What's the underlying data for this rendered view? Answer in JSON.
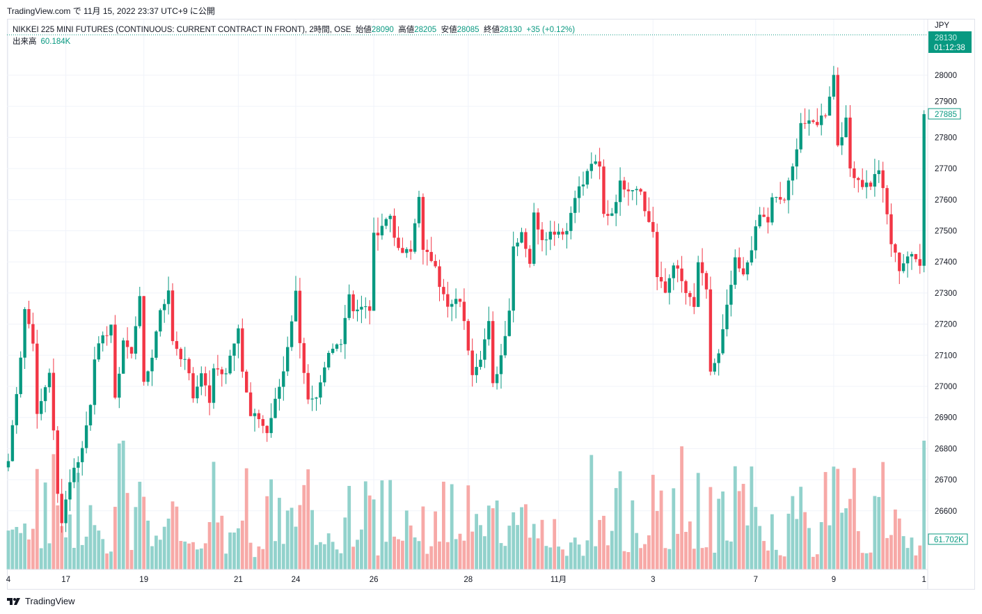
{
  "published": "TradingView.com で 11月 15, 2022 23:37 UTC+9 に公開",
  "legend": {
    "symbol": "NIKKEI 225 MINI FUTURES (CONTINUOUS: CURRENT CONTRACT IN FRONT), 2時間, OSE",
    "open_label": "始値",
    "open": "28090",
    "high_label": "高値",
    "high": "28205",
    "low_label": "安値",
    "low": "28085",
    "close_label": "終値",
    "close": "28130",
    "change": "+35 (+0.12%)",
    "volume_label": "出来高",
    "volume": "60.184K"
  },
  "price_axis": {
    "currency": "JPY",
    "countdown_price": "28130",
    "countdown": "01:12:38",
    "last_price": "27885",
    "last_volume": "61.702K"
  },
  "footer": "TradingView",
  "colors": {
    "up": "#089981",
    "down": "#f23645",
    "up_vol": "#92d2cc",
    "down_vol": "#f7a9a7"
  },
  "chart_data": {
    "type": "candlestick",
    "ylim": [
      26500,
      28160
    ],
    "yticks": [
      28000,
      27900,
      27800,
      27700,
      27600,
      27500,
      27400,
      27300,
      27200,
      27100,
      27000,
      26900,
      26800,
      26700,
      26600
    ],
    "xticks": [
      {
        "i": 0,
        "label": "4"
      },
      {
        "i": 14,
        "label": "17"
      },
      {
        "i": 33,
        "label": "19"
      },
      {
        "i": 56,
        "label": "21"
      },
      {
        "i": 70,
        "label": "24"
      },
      {
        "i": 89,
        "label": "26"
      },
      {
        "i": 112,
        "label": "28"
      },
      {
        "i": 134,
        "label": "11月"
      },
      {
        "i": 157,
        "label": "3"
      },
      {
        "i": 182,
        "label": "7"
      },
      {
        "i": 201,
        "label": "9"
      },
      {
        "i": 223,
        "label": "1"
      }
    ],
    "count": 224,
    "waypoints": [
      [
        0,
        26760
      ],
      [
        3,
        27100
      ],
      [
        4,
        27250
      ],
      [
        6,
        27150
      ],
      [
        7,
        26900
      ],
      [
        10,
        27050
      ],
      [
        11,
        26850
      ],
      [
        12,
        26650
      ],
      [
        13,
        26573
      ],
      [
        15,
        26700
      ],
      [
        18,
        26800
      ],
      [
        20,
        26950
      ],
      [
        21,
        27100
      ],
      [
        25,
        27200
      ],
      [
        26,
        26950
      ],
      [
        28,
        27150
      ],
      [
        30,
        27100
      ],
      [
        32,
        27300
      ],
      [
        33,
        27000
      ],
      [
        35,
        27100
      ],
      [
        37,
        27250
      ],
      [
        39,
        27300
      ],
      [
        40,
        27150
      ],
      [
        44,
        27050
      ],
      [
        45,
        26950
      ],
      [
        47,
        27050
      ],
      [
        49,
        26950
      ],
      [
        50,
        27050
      ],
      [
        53,
        27050
      ],
      [
        56,
        27200
      ],
      [
        57,
        27050
      ],
      [
        59,
        26900
      ],
      [
        61,
        26900
      ],
      [
        63,
        26850
      ],
      [
        65,
        26950
      ],
      [
        67,
        27050
      ],
      [
        70,
        27300
      ],
      [
        71,
        27150
      ],
      [
        72,
        27050
      ],
      [
        73,
        26950
      ],
      [
        75,
        26950
      ],
      [
        78,
        27100
      ],
      [
        81,
        27150
      ],
      [
        83,
        27300
      ],
      [
        84,
        27250
      ],
      [
        88,
        27250
      ],
      [
        89,
        27480
      ],
      [
        91,
        27520
      ],
      [
        93,
        27550
      ],
      [
        95,
        27430
      ],
      [
        98,
        27430
      ],
      [
        100,
        27620
      ],
      [
        101,
        27430
      ],
      [
        104,
        27400
      ],
      [
        105,
        27330
      ],
      [
        107,
        27250
      ],
      [
        110,
        27280
      ],
      [
        111,
        27200
      ],
      [
        113,
        27050
      ],
      [
        115,
        27100
      ],
      [
        117,
        27200
      ],
      [
        118,
        27000
      ],
      [
        120,
        27100
      ],
      [
        122,
        27250
      ],
      [
        123,
        27450
      ],
      [
        125,
        27500
      ],
      [
        127,
        27400
      ],
      [
        128,
        27550
      ],
      [
        130,
        27480
      ],
      [
        133,
        27500
      ],
      [
        136,
        27500
      ],
      [
        138,
        27620
      ],
      [
        140,
        27650
      ],
      [
        142,
        27720
      ],
      [
        144,
        27700
      ],
      [
        145,
        27550
      ],
      [
        147,
        27560
      ],
      [
        149,
        27650
      ],
      [
        151,
        27640
      ],
      [
        154,
        27640
      ],
      [
        155,
        27560
      ],
      [
        157,
        27500
      ],
      [
        158,
        27350
      ],
      [
        160,
        27300
      ],
      [
        162,
        27400
      ],
      [
        165,
        27300
      ],
      [
        167,
        27250
      ],
      [
        168,
        27400
      ],
      [
        170,
        27300
      ],
      [
        171,
        27050
      ],
      [
        173,
        27100
      ],
      [
        175,
        27250
      ],
      [
        177,
        27400
      ],
      [
        179,
        27350
      ],
      [
        181,
        27450
      ],
      [
        183,
        27550
      ],
      [
        185,
        27530
      ],
      [
        186,
        27600
      ],
      [
        189,
        27600
      ],
      [
        191,
        27700
      ],
      [
        193,
        27850
      ],
      [
        195,
        27840
      ],
      [
        197,
        27850
      ],
      [
        199,
        27880
      ],
      [
        201,
        28000
      ],
      [
        202,
        27780
      ],
      [
        204,
        27850
      ],
      [
        205,
        27700
      ],
      [
        208,
        27650
      ],
      [
        210,
        27650
      ],
      [
        212,
        27700
      ],
      [
        214,
        27550
      ],
      [
        215,
        27460
      ],
      [
        217,
        27380
      ],
      [
        219,
        27420
      ],
      [
        222,
        27400
      ],
      [
        223,
        27885
      ]
    ]
  }
}
